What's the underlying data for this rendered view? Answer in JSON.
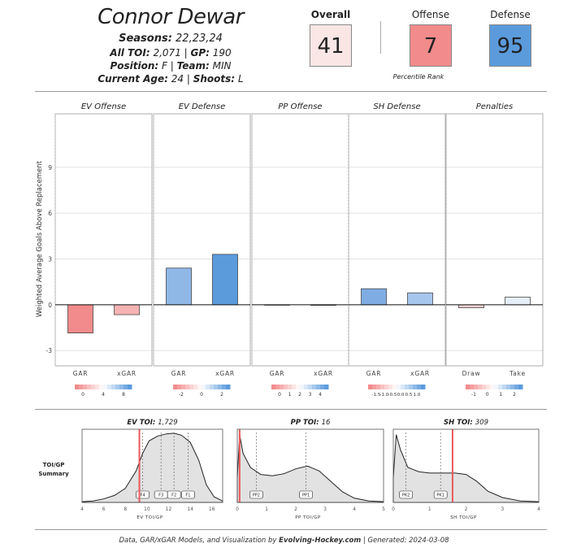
{
  "player": {
    "name": "Connor Dewar",
    "seasons_label": "Seasons:",
    "seasons_value": "22,23,24",
    "toi_label": "All TOI:",
    "toi_value": "2,071",
    "gp_label": "GP:",
    "gp_value": "190",
    "position_label": "Position:",
    "position_value": "F",
    "team_label": "Team:",
    "team_value": "MIN",
    "age_label": "Current Age:",
    "age_value": "24",
    "shoots_label": "Shoots:",
    "shoots_value": "L"
  },
  "scores": {
    "overall_label": "Overall",
    "overall_value": "41",
    "offense_label": "Offense",
    "offense_value": "7",
    "defense_label": "Defense",
    "defense_value": "95",
    "percentile_caption": "Percentile Rank",
    "colors": {
      "overall": "#fbe6e6",
      "offense": "#f28b8b",
      "defense": "#5b9bdc"
    }
  },
  "chart_data": [
    {
      "type": "bar",
      "ylabel": "Weighted Average Goals Above Replacement",
      "ylim": [
        -4,
        12.5
      ],
      "yticks": [
        -3,
        0,
        3,
        6,
        9
      ],
      "panels": [
        {
          "title": "EV Offense",
          "categories": [
            "GAR",
            "xGAR"
          ],
          "values": [
            -1.85,
            -0.65
          ],
          "colors": [
            "#f28b8b",
            "#f6b3b3"
          ],
          "legend_ticks": [
            "0",
            "4",
            "8"
          ]
        },
        {
          "title": "EV Defense",
          "categories": [
            "GAR",
            "xGAR"
          ],
          "values": [
            2.4,
            3.3
          ],
          "colors": [
            "#8fb8e6",
            "#5b9bdc"
          ],
          "legend_ticks": [
            "-2",
            "0",
            "2"
          ]
        },
        {
          "title": "PP Offense",
          "categories": [
            "GAR",
            "xGAR"
          ],
          "values": [
            0.0,
            -0.04
          ],
          "colors": [
            "#e8eef7",
            "#e8eef7"
          ],
          "legend_ticks": [
            "0",
            "1",
            "2",
            "3",
            "4"
          ]
        },
        {
          "title": "SH Defense",
          "categories": [
            "GAR",
            "xGAR"
          ],
          "values": [
            1.05,
            0.78
          ],
          "colors": [
            "#7fade3",
            "#a7c6ec"
          ],
          "legend_ticks": [
            "-1.5",
            "-1.0",
            "-0.5",
            "0.0",
            "0.5",
            "1.0"
          ]
        },
        {
          "title": "Penalties",
          "categories": [
            "Draw",
            "Take"
          ],
          "values": [
            -0.2,
            0.5
          ],
          "colors": [
            "#f8d2d2",
            "#e6eff9"
          ],
          "legend_ticks": [
            "-1",
            "0",
            "1",
            "2"
          ]
        }
      ]
    },
    {
      "type": "area",
      "side_label_1": "TOI/GP",
      "side_label_2": "Summary",
      "panels": [
        {
          "title_label": "EV TOI:",
          "title_value": "1,729",
          "xlabel": "EV TOI/GP",
          "xlim": [
            4,
            17
          ],
          "xticks": [
            4,
            6,
            8,
            10,
            12,
            14,
            16
          ],
          "player_value": 9.3,
          "density": [
            [
              4,
              0.01
            ],
            [
              5,
              0.02
            ],
            [
              6,
              0.05
            ],
            [
              7,
              0.1
            ],
            [
              8,
              0.2
            ],
            [
              9,
              0.45
            ],
            [
              9.6,
              0.7
            ],
            [
              10.2,
              0.88
            ],
            [
              11,
              0.95
            ],
            [
              11.8,
              0.98
            ],
            [
              12.5,
              0.99
            ],
            [
              13.2,
              0.96
            ],
            [
              14,
              0.86
            ],
            [
              14.8,
              0.6
            ],
            [
              15.5,
              0.25
            ],
            [
              16.2,
              0.08
            ],
            [
              17,
              0.02
            ]
          ],
          "markers": [
            {
              "label": "F4",
              "x": 9.6
            },
            {
              "label": "F3",
              "x": 11.3
            },
            {
              "label": "F2",
              "x": 12.5
            },
            {
              "label": "F1",
              "x": 13.8
            }
          ]
        },
        {
          "title_label": "PP TOI:",
          "title_value": "16",
          "xlabel": "PP TOI/GP",
          "xlim": [
            0,
            5
          ],
          "xticks": [
            0,
            1,
            2,
            3,
            4,
            5
          ],
          "player_value": 0.08,
          "density": [
            [
              0,
              0.35
            ],
            [
              0.08,
              0.97
            ],
            [
              0.2,
              0.7
            ],
            [
              0.45,
              0.5
            ],
            [
              0.8,
              0.4
            ],
            [
              1.2,
              0.38
            ],
            [
              1.6,
              0.41
            ],
            [
              2.0,
              0.48
            ],
            [
              2.4,
              0.52
            ],
            [
              2.8,
              0.45
            ],
            [
              3.2,
              0.3
            ],
            [
              3.6,
              0.15
            ],
            [
              4.0,
              0.06
            ],
            [
              4.5,
              0.02
            ],
            [
              5,
              0.01
            ]
          ],
          "markers": [
            {
              "label": "PP2",
              "x": 0.65
            },
            {
              "label": "PP1",
              "x": 2.35
            }
          ]
        },
        {
          "title_label": "SH TOI:",
          "title_value": "309",
          "xlabel": "SH TOI/GP",
          "xlim": [
            0,
            4
          ],
          "xticks": [
            0,
            1,
            2,
            3,
            4
          ],
          "player_value": 1.63,
          "density": [
            [
              0,
              0.35
            ],
            [
              0.08,
              0.97
            ],
            [
              0.2,
              0.75
            ],
            [
              0.4,
              0.5
            ],
            [
              0.7,
              0.44
            ],
            [
              1.0,
              0.42
            ],
            [
              1.4,
              0.42
            ],
            [
              1.7,
              0.42
            ],
            [
              2.0,
              0.4
            ],
            [
              2.3,
              0.3
            ],
            [
              2.6,
              0.16
            ],
            [
              3.0,
              0.07
            ],
            [
              3.5,
              0.02
            ],
            [
              4,
              0.01
            ]
          ],
          "markers": [
            {
              "label": "PK2",
              "x": 0.35
            },
            {
              "label": "PK1",
              "x": 1.3
            }
          ]
        }
      ]
    }
  ],
  "footer": {
    "prefix": "Data, GAR/xGAR Models, and Visualization by ",
    "brand": "Evolving-Hockey.com",
    "suffix": " | Generated: 2024-03-08"
  }
}
